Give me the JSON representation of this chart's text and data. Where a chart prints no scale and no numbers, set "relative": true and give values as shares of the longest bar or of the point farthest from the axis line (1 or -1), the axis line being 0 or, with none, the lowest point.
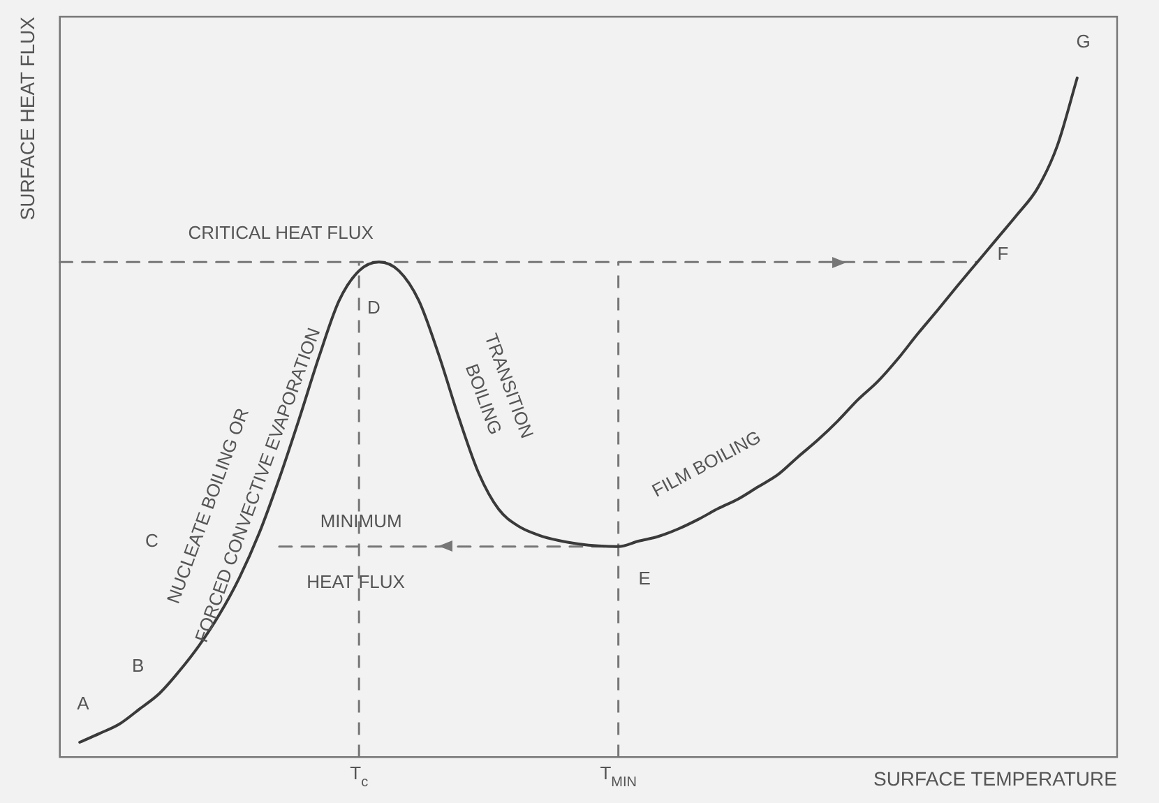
{
  "chart_data": {
    "type": "line",
    "relative": true,
    "xlabel": "SURFACE TEMPERATURE",
    "ylabel": "SURFACE HEAT FLUX",
    "categories": [
      null,
      null,
      null,
      null,
      null,
      null,
      null,
      null,
      null,
      null,
      null,
      null,
      null,
      null,
      null,
      "T$_{c}$",
      null,
      null,
      null,
      null,
      null,
      null,
      null,
      null,
      null,
      null,
      null,
      null,
      "T$_{MIN}$",
      null,
      null,
      null,
      null,
      null,
      null,
      null,
      null,
      null,
      null,
      null,
      null,
      null,
      null,
      null,
      null,
      null,
      null,
      null,
      null,
      null,
      null,
      null,
      null,
      null
    ],
    "grid": false,
    "legend": false,
    "marker": "none",
    "series": [
      {
        "color": "#3a3a3a",
        "line_style": "solid",
        "values": [
          null,
          0.022,
          0.035,
          0.049,
          0.071,
          0.094,
          0.127,
          0.165,
          0.21,
          0.264,
          0.33,
          0.41,
          0.498,
          0.59,
          0.672,
          0.716,
          0.729,
          0.716,
          0.672,
          0.592,
          0.5,
          0.418,
          0.365,
          0.34,
          0.327,
          0.319,
          0.314,
          0.311,
          0.31,
          0.318,
          0.325,
          0.336,
          0.35,
          0.366,
          0.38,
          0.398,
          0.416,
          0.442,
          0.467,
          0.495,
          0.526,
          0.553,
          0.586,
          0.623,
          0.658,
          0.694,
          0.729,
          0.764,
          0.799,
          0.837,
          0.9,
          1.0,
          null,
          null
        ]
      },
      {
        "color": "#777777",
        "line_style": "dashed",
        "values": [
          0.729,
          0.729,
          0.729,
          0.729,
          0.729,
          0.729,
          0.729,
          0.729,
          0.729,
          0.729,
          0.729,
          0.729,
          0.729,
          0.729,
          0.729,
          0.729,
          0.729,
          0.729,
          0.729,
          0.729,
          0.729,
          0.729,
          0.729,
          0.729,
          0.729,
          0.729,
          0.729,
          0.729,
          0.729,
          0.729,
          0.729,
          0.729,
          0.729,
          0.729,
          0.729,
          0.729,
          0.729,
          0.729,
          0.729,
          0.729,
          0.729,
          0.729,
          0.729,
          0.729,
          0.729,
          0.729,
          0.729,
          null,
          null,
          null,
          null,
          null,
          null,
          null
        ]
      },
      {
        "color": "#777777",
        "line_style": "dashed",
        "values": [
          null,
          null,
          null,
          null,
          null,
          null,
          null,
          null,
          null,
          null,
          null,
          0.31,
          0.31,
          0.31,
          0.31,
          0.31,
          0.31,
          0.31,
          0.31,
          0.31,
          0.31,
          0.31,
          0.31,
          0.31,
          0.31,
          0.31,
          0.31,
          0.31,
          0.31,
          null,
          null,
          null,
          null,
          null,
          null,
          null,
          null,
          null,
          null,
          null,
          null,
          null,
          null,
          null,
          null,
          null,
          null,
          null,
          null,
          null,
          null,
          null,
          null,
          null
        ]
      }
    ],
    "ref_lines": [
      {
        "axis": "x",
        "value": "T$_{c}$",
        "color": "#777777",
        "line_style": "dashed"
      },
      {
        "axis": "x",
        "value": "T$_{MIN}$",
        "color": "#777777",
        "line_style": "dashed"
      }
    ],
    "annotations": [
      "A",
      "B",
      "C",
      "D",
      "E",
      "F",
      "G",
      "CRITICAL HEAT FLUX",
      "MINIMUM",
      "HEAT FLUX",
      "NUCLEATE BOILING OR",
      "FORCED CONVECTIVE EVAPORATION",
      "TRANSITION",
      "BOILING",
      "FILM BOILING"
    ]
  }
}
